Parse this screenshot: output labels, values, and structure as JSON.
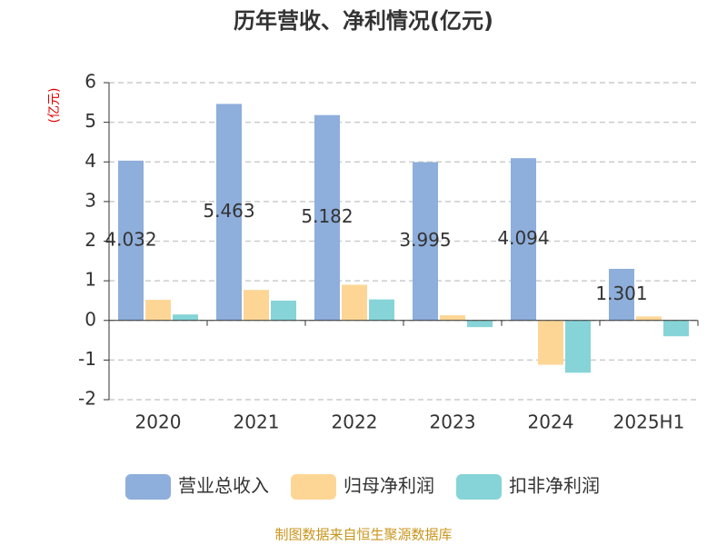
{
  "chart_data": {
    "type": "bar",
    "title": "历年营收、净利情况(亿元)",
    "y_label": "(亿元)",
    "categories": [
      "2020",
      "2021",
      "2022",
      "2023",
      "2024",
      "2025H1"
    ],
    "series": [
      {
        "name": "营业总收入",
        "color": "#8eaedb",
        "values": [
          4.032,
          5.463,
          5.182,
          3.995,
          4.094,
          1.301
        ],
        "labels": true
      },
      {
        "name": "归母净利润",
        "color": "#fdd696",
        "values": [
          0.52,
          0.77,
          0.9,
          0.13,
          -1.12,
          0.1
        ]
      },
      {
        "name": "扣非净利润",
        "color": "#86d4d8",
        "values": [
          0.15,
          0.5,
          0.53,
          -0.17,
          -1.32,
          -0.4
        ]
      }
    ],
    "ylim": [
      -2,
      6
    ],
    "yticks": [
      -2,
      -1,
      0,
      1,
      2,
      3,
      4,
      5,
      6
    ],
    "grid": true,
    "legend": "bottom",
    "source": "制图数据来自恒生聚源数据库"
  }
}
